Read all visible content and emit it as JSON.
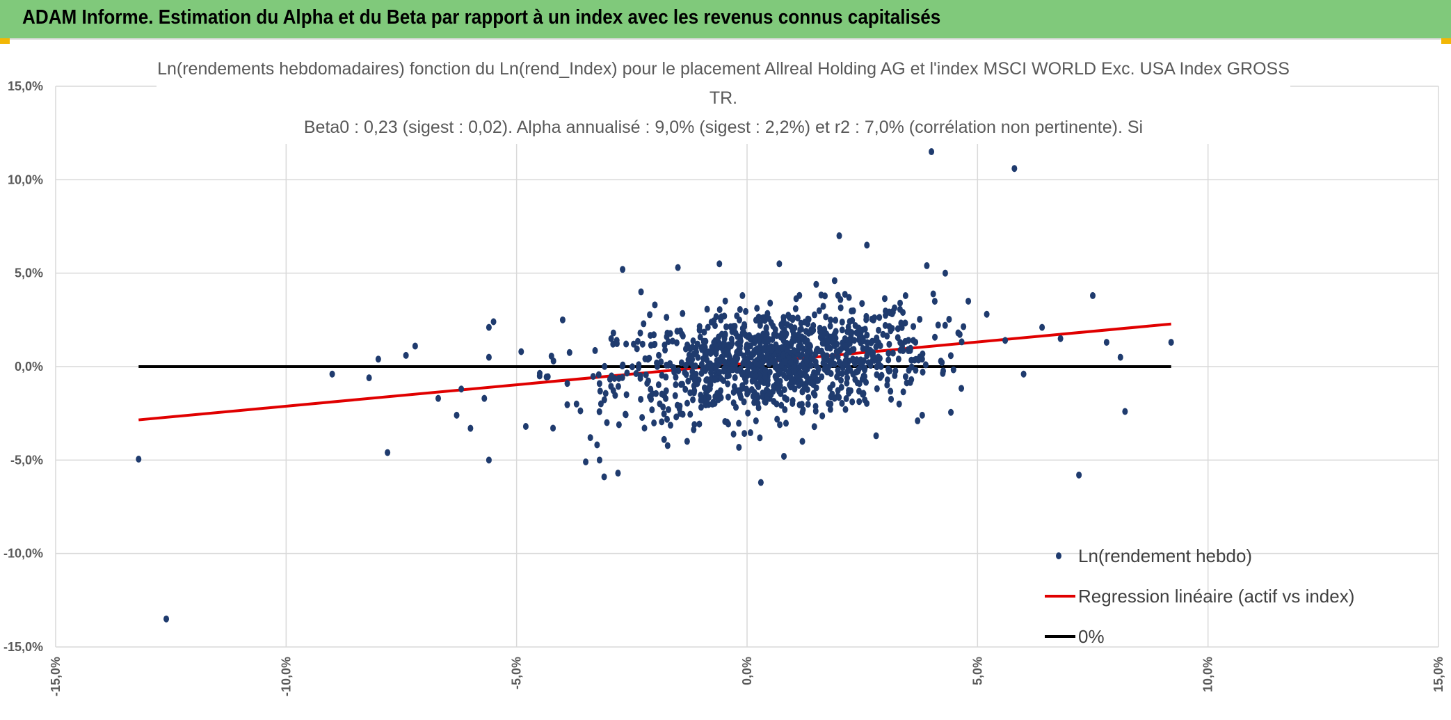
{
  "header": {
    "title": "ADAM Informe. Estimation du Alpha et du Beta par rapport à un index avec les revenus connus capitalisés"
  },
  "colors": {
    "banner": "#80c97b",
    "points": "#1f3b6e",
    "regression": "#e00000",
    "zero_line": "#000000",
    "grid": "#d9d9d9"
  },
  "chart_data": {
    "type": "scatter",
    "title_lines": [
      "Ln(rendements hebdomadaires) fonction du Ln(rend_Index) pour le placement Allreal Holding AG et l'index MSCI WORLD Exc. USA Index GROSS",
      "TR.",
      "Beta0 : 0,23 (sigest : 0,02). Alpha annualisé : 9,0% (sigest : 2,2%) et r2 : 7,0% (corrélation non pertinente). Si"
    ],
    "xlim": [
      -0.15,
      0.15
    ],
    "ylim": [
      -0.15,
      0.15
    ],
    "x_ticks": [
      -0.15,
      -0.1,
      -0.05,
      0.0,
      0.05,
      0.1,
      0.15
    ],
    "y_ticks": [
      -0.15,
      -0.1,
      -0.05,
      0.0,
      0.05,
      0.1,
      0.15
    ],
    "x_tick_labels": [
      "-15,0%",
      "-10,0%",
      "-5,0%",
      "0,0%",
      "5,0%",
      "10,0%",
      "15,0%"
    ],
    "y_tick_labels": [
      "-15,0%",
      "-10,0%",
      "-5,0%",
      "0,0%",
      "5,0%",
      "10,0%",
      "15,0%"
    ],
    "grid": true,
    "legend_position": "bottom-right",
    "series": [
      {
        "name": "Ln(rendement hebdo)",
        "kind": "scatter",
        "color": "#1f3b6e",
        "points": [
          [
            -0.132,
            -0.0495
          ],
          [
            -0.126,
            -0.135
          ],
          [
            -0.09,
            -0.004
          ],
          [
            -0.082,
            -0.006
          ],
          [
            -0.08,
            0.004
          ],
          [
            -0.078,
            -0.046
          ],
          [
            -0.074,
            0.006
          ],
          [
            -0.072,
            0.011
          ],
          [
            -0.067,
            -0.017
          ],
          [
            -0.063,
            -0.026
          ],
          [
            -0.062,
            -0.012
          ],
          [
            -0.06,
            -0.033
          ],
          [
            -0.057,
            -0.017
          ],
          [
            -0.056,
            0.021
          ],
          [
            -0.055,
            0.024
          ],
          [
            -0.056,
            0.005
          ],
          [
            -0.056,
            -0.05
          ],
          [
            -0.049,
            0.008
          ],
          [
            -0.048,
            -0.032
          ],
          [
            -0.045,
            -0.005
          ],
          [
            -0.042,
            0.003
          ],
          [
            -0.04,
            0.025
          ],
          [
            -0.039,
            -0.009
          ],
          [
            -0.037,
            -0.02
          ],
          [
            -0.035,
            -0.051
          ],
          [
            -0.034,
            -0.038
          ],
          [
            -0.032,
            -0.05
          ],
          [
            -0.031,
            -0.059
          ],
          [
            -0.028,
            -0.057
          ],
          [
            -0.029,
            0.018
          ],
          [
            -0.027,
            0.052
          ],
          [
            -0.023,
            0.04
          ],
          [
            -0.02,
            0.033
          ],
          [
            -0.015,
            0.053
          ],
          [
            -0.013,
            -0.04
          ],
          [
            -0.018,
            -0.039
          ],
          [
            -0.006,
            0.055
          ],
          [
            -0.001,
            0.038
          ],
          [
            0.007,
            0.055
          ],
          [
            0.004,
            -0.006
          ],
          [
            0.003,
            -0.062
          ],
          [
            0.008,
            -0.048
          ],
          [
            0.012,
            -0.04
          ],
          [
            0.015,
            0.044
          ],
          [
            0.019,
            0.046
          ],
          [
            0.02,
            0.07
          ],
          [
            0.026,
            0.065
          ],
          [
            0.03,
            0.022
          ],
          [
            0.028,
            -0.037
          ],
          [
            0.033,
            -0.02
          ],
          [
            0.037,
            -0.029
          ],
          [
            0.038,
            -0.026
          ],
          [
            0.039,
            0.054
          ],
          [
            0.043,
            0.05
          ],
          [
            0.04,
            0.115
          ],
          [
            0.038,
            0.004
          ],
          [
            0.058,
            0.106
          ],
          [
            0.048,
            0.035
          ],
          [
            0.052,
            0.028
          ],
          [
            0.056,
            0.014
          ],
          [
            0.06,
            -0.004
          ],
          [
            0.064,
            0.021
          ],
          [
            0.068,
            0.015
          ],
          [
            0.072,
            -0.058
          ],
          [
            0.075,
            0.038
          ],
          [
            0.078,
            0.013
          ],
          [
            0.081,
            0.005
          ],
          [
            0.082,
            -0.024
          ],
          [
            0.092,
            0.013
          ]
        ]
      },
      {
        "name": "Regression linéaire (actif vs index)",
        "kind": "line",
        "color": "#e00000",
        "x": [
          -0.132,
          0.092
        ],
        "y": [
          -0.0285,
          0.0228
        ]
      },
      {
        "name": "0%",
        "kind": "line",
        "color": "#000000",
        "x": [
          -0.132,
          0.092
        ],
        "y": [
          0.0,
          0.0
        ]
      }
    ]
  }
}
